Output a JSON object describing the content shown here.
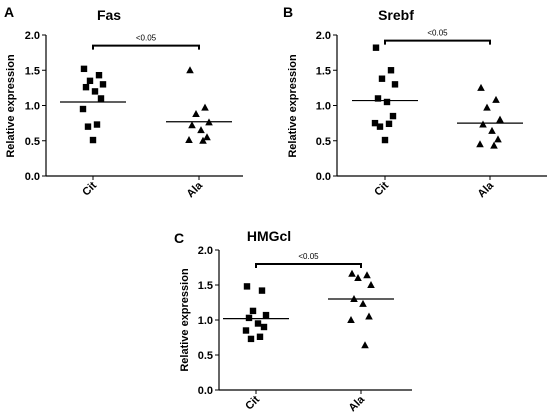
{
  "chart_data": [
    {
      "type": "scatter",
      "panel": "A",
      "title": "Fas",
      "ylabel": "Relative expression",
      "xlabel": "",
      "categories": [
        "Cit",
        "Ala"
      ],
      "ylim": [
        0.0,
        2.0
      ],
      "yticks": [
        "0.0",
        "0.5",
        "1.0",
        "1.5",
        "2.0"
      ],
      "grid": false,
      "series": [
        {
          "category": "Cit",
          "marker": "square",
          "mean": 1.05,
          "values": [
            1.52,
            1.43,
            1.35,
            1.3,
            1.26,
            1.2,
            1.1,
            0.95,
            0.73,
            0.7,
            0.51
          ]
        },
        {
          "category": "Ala",
          "marker": "triangle",
          "mean": 0.77,
          "values": [
            1.5,
            0.97,
            0.88,
            0.76,
            0.72,
            0.65,
            0.55,
            0.51,
            0.5
          ]
        }
      ],
      "annotation": {
        "text": "<0.05",
        "between": [
          "Cit",
          "Ala"
        ],
        "y": 1.85
      }
    },
    {
      "type": "scatter",
      "panel": "B",
      "title": "Srebf",
      "ylabel": "Relative expression",
      "xlabel": "",
      "categories": [
        "Cit",
        "Ala"
      ],
      "ylim": [
        0.0,
        2.0
      ],
      "yticks": [
        "0.0",
        "0.5",
        "1.0",
        "1.5",
        "2.0"
      ],
      "grid": false,
      "series": [
        {
          "category": "Cit",
          "marker": "square",
          "mean": 1.07,
          "values": [
            1.82,
            1.5,
            1.38,
            1.3,
            1.1,
            1.05,
            0.85,
            0.75,
            0.74,
            0.7,
            0.51
          ]
        },
        {
          "category": "Ala",
          "marker": "triangle",
          "mean": 0.75,
          "values": [
            1.25,
            1.08,
            0.97,
            0.8,
            0.73,
            0.64,
            0.52,
            0.45,
            0.43
          ]
        }
      ],
      "annotation": {
        "text": "<0.05",
        "between": [
          "Cit",
          "Ala"
        ],
        "y": 1.92
      }
    },
    {
      "type": "scatter",
      "panel": "C",
      "title": "HMGcl",
      "ylabel": "Relative expression",
      "xlabel": "",
      "categories": [
        "Cit",
        "Ala"
      ],
      "ylim": [
        0.0,
        2.0
      ],
      "yticks": [
        "0.0",
        "0.5",
        "1.0",
        "1.5",
        "2.0"
      ],
      "grid": false,
      "series": [
        {
          "category": "Cit",
          "marker": "square",
          "mean": 1.02,
          "values": [
            1.48,
            1.42,
            1.13,
            1.07,
            1.03,
            0.95,
            0.9,
            0.85,
            0.76,
            0.73
          ]
        },
        {
          "category": "Ala",
          "marker": "triangle",
          "mean": 1.3,
          "values": [
            1.66,
            1.64,
            1.6,
            1.5,
            1.3,
            1.23,
            1.05,
            1.0,
            0.64
          ]
        }
      ],
      "annotation": {
        "text": "<0.05",
        "between": [
          "Cit",
          "Ala"
        ],
        "y": 1.8
      }
    }
  ]
}
